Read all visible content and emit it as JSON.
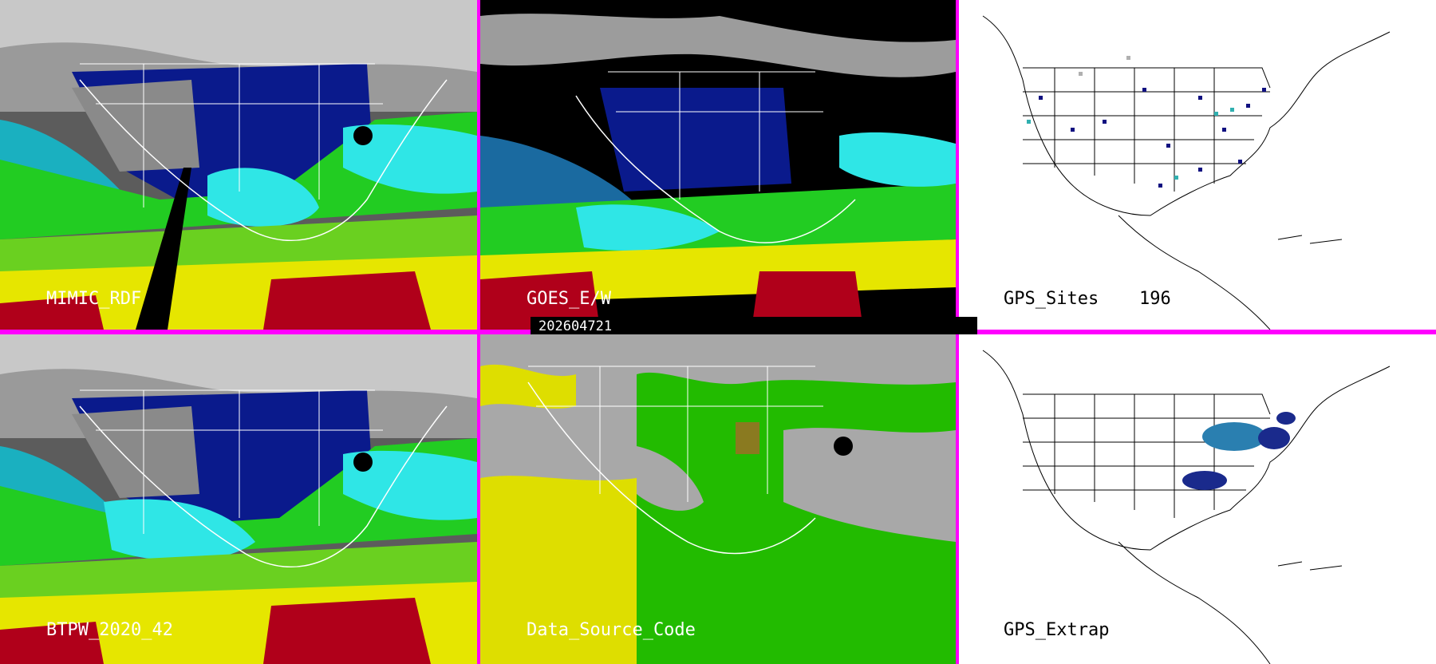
{
  "panels": [
    {
      "id": "mimic",
      "label": "MIMIC_RDF",
      "style": "sat-moisture"
    },
    {
      "id": "goes",
      "label": "GOES_E/W",
      "style": "goes"
    },
    {
      "id": "gps-sites",
      "label": "GPS_Sites",
      "count": "196",
      "style": "gps"
    },
    {
      "id": "btpw",
      "label": "BTPW_2020_42",
      "style": "sat-moisture"
    },
    {
      "id": "dsc",
      "label": "Data_Source_Code",
      "style": "source"
    },
    {
      "id": "gps-extrap",
      "label": "GPS_Extrap",
      "style": "gps"
    }
  ],
  "timestamp": "202604721",
  "colors": {
    "divider": "#ff00ff",
    "dry": "#0a0a8c",
    "moist_cyan": "#2fe6e6",
    "green": "#22cc22",
    "yellow": "#e6e600",
    "red": "#b0001a",
    "cloud_gray": "#a8a8a8",
    "source_yellow": "#dede00",
    "source_green": "#22bb00",
    "site_navy": "#101080",
    "site_cyan": "#30b0b0",
    "site_gray": "#b0b0b0"
  }
}
